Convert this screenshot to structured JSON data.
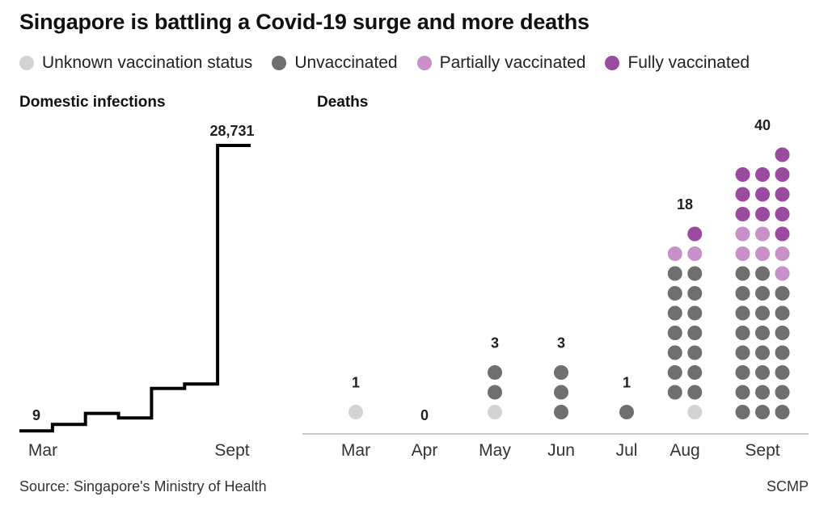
{
  "title": "Singapore is battling a Covid-19 surge and more deaths",
  "legend": [
    {
      "label": "Unknown vaccination status",
      "color": "#d3d3d5",
      "key": "unknown"
    },
    {
      "label": "Unvaccinated",
      "color": "#6f6f6f",
      "key": "unvaccinated"
    },
    {
      "label": "Partially vaccinated",
      "color": "#c890c8",
      "key": "partial"
    },
    {
      "label": "Fully vaccinated",
      "color": "#9a4a9f",
      "key": "full"
    }
  ],
  "footer": {
    "source": "Source: Singapore's Ministry of Health",
    "credit": "SCMP"
  },
  "chart_data": [
    {
      "type": "line",
      "title": "Domestic infections",
      "step": true,
      "x": [
        "Mar",
        "Apr",
        "May",
        "Jun",
        "Jul",
        "Aug",
        "Sept"
      ],
      "values": [
        9,
        60,
        500,
        250,
        2500,
        2900,
        28731
      ],
      "tick_labels": [
        "Mar",
        "Sept"
      ],
      "data_labels": [
        {
          "x": "Mar",
          "label": "9"
        },
        {
          "x": "Sept",
          "label": "28,731"
        }
      ],
      "ylim": [
        0,
        28731
      ]
    },
    {
      "type": "scatter",
      "subtype": "dot-stack",
      "title": "Deaths",
      "categories": [
        "Mar",
        "Apr",
        "May",
        "Jun",
        "Jul",
        "Aug",
        "Sept"
      ],
      "totals": [
        1,
        0,
        3,
        3,
        1,
        18,
        40
      ],
      "columns_per_stack": [
        1,
        1,
        1,
        1,
        1,
        2,
        3
      ],
      "series": [
        {
          "name": "Unknown vaccination status",
          "key": "unknown",
          "values": [
            1,
            0,
            1,
            0,
            0,
            1,
            0
          ]
        },
        {
          "name": "Unvaccinated",
          "key": "unvaccinated",
          "values": [
            0,
            0,
            2,
            3,
            1,
            14,
            23
          ]
        },
        {
          "name": "Partially vaccinated",
          "key": "partial",
          "values": [
            0,
            0,
            0,
            0,
            0,
            2,
            6
          ]
        },
        {
          "name": "Fully vaccinated",
          "key": "full",
          "values": [
            0,
            0,
            0,
            0,
            0,
            1,
            11
          ]
        }
      ]
    }
  ]
}
